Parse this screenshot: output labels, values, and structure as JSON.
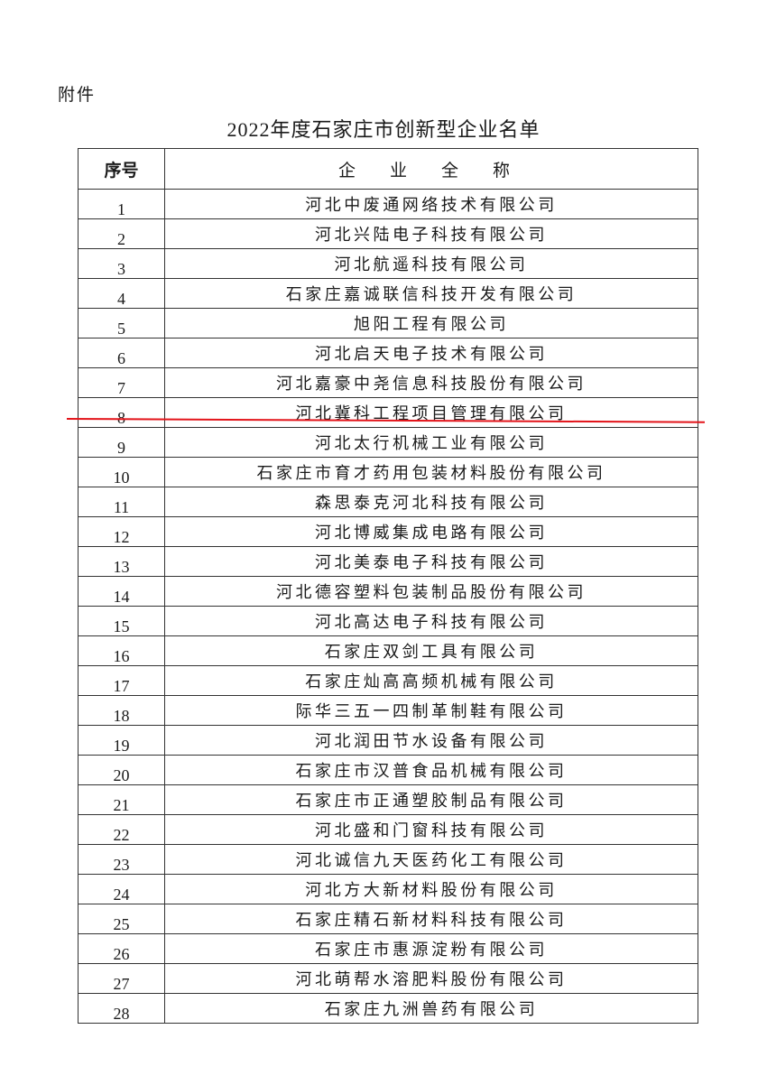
{
  "attachment_label": "附件",
  "title": "2022年度石家庄市创新型企业名单",
  "table": {
    "headers": {
      "number": "序号",
      "name": "企 业 全 称"
    },
    "rows": [
      {
        "n": "1",
        "name": "河北中废通网络技术有限公司"
      },
      {
        "n": "2",
        "name": "河北兴陆电子科技有限公司"
      },
      {
        "n": "3",
        "name": "河北航遥科技有限公司"
      },
      {
        "n": "4",
        "name": "石家庄嘉诚联信科技开发有限公司"
      },
      {
        "n": "5",
        "name": "旭阳工程有限公司"
      },
      {
        "n": "6",
        "name": "河北启天电子技术有限公司"
      },
      {
        "n": "7",
        "name": "河北嘉豪中尧信息科技股份有限公司"
      },
      {
        "n": "8",
        "name": "河北冀科工程项目管理有限公司"
      },
      {
        "n": "9",
        "name": "河北太行机械工业有限公司"
      },
      {
        "n": "10",
        "name": "石家庄市育才药用包装材料股份有限公司"
      },
      {
        "n": "11",
        "name": "森思泰克河北科技有限公司"
      },
      {
        "n": "12",
        "name": "河北博威集成电路有限公司"
      },
      {
        "n": "13",
        "name": "河北美泰电子科技有限公司"
      },
      {
        "n": "14",
        "name": "河北德容塑料包装制品股份有限公司"
      },
      {
        "n": "15",
        "name": "河北高达电子科技有限公司"
      },
      {
        "n": "16",
        "name": "石家庄双剑工具有限公司"
      },
      {
        "n": "17",
        "name": "石家庄灿高高频机械有限公司"
      },
      {
        "n": "18",
        "name": "际华三五一四制革制鞋有限公司"
      },
      {
        "n": "19",
        "name": "河北润田节水设备有限公司"
      },
      {
        "n": "20",
        "name": "石家庄市汉普食品机械有限公司"
      },
      {
        "n": "21",
        "name": "石家庄市正通塑胶制品有限公司"
      },
      {
        "n": "22",
        "name": "河北盛和门窗科技有限公司"
      },
      {
        "n": "23",
        "name": "河北诚信九天医药化工有限公司"
      },
      {
        "n": "24",
        "name": "河北方大新材料股份有限公司"
      },
      {
        "n": "25",
        "name": "石家庄精石新材料科技有限公司"
      },
      {
        "n": "26",
        "name": "石家庄市惠源淀粉有限公司"
      },
      {
        "n": "27",
        "name": "河北萌帮水溶肥料股份有限公司"
      },
      {
        "n": "28",
        "name": "石家庄九洲兽药有限公司"
      }
    ]
  },
  "colors": {
    "annotation_line": "#e3141a",
    "text": "#1a1a1a"
  }
}
